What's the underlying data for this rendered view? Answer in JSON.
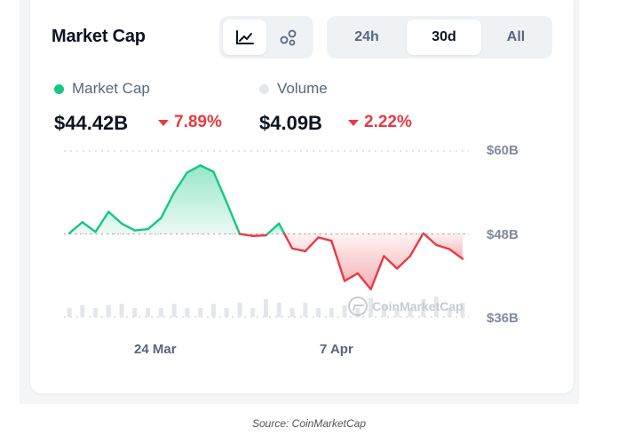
{
  "widget": {
    "title": "Market Cap",
    "chart_type_buttons": [
      {
        "icon": "line-chart-icon",
        "active": true
      },
      {
        "icon": "candle-dots-icon",
        "active": false
      }
    ],
    "time_ranges": [
      {
        "label": "24h",
        "active": false
      },
      {
        "label": "30d",
        "active": true
      },
      {
        "label": "All",
        "active": false
      }
    ],
    "legend": [
      {
        "label": "Market Cap",
        "color": "#16c784"
      },
      {
        "label": "Volume",
        "color": "#e3e6eb"
      }
    ],
    "stats": {
      "market_cap": {
        "value": "$44.42B",
        "change": "7.89%"
      },
      "volume": {
        "value": "$4.09B",
        "change": "2.22%"
      }
    },
    "watermark": "CoinMarketCap"
  },
  "caption": "Source: CoinMarketCap",
  "colors": {
    "up": "#16c784",
    "down": "#ea3943",
    "volume": "#e3e6eb"
  },
  "chart_data": {
    "type": "area",
    "title": "",
    "y_ticks": [
      "$60B",
      "$48B",
      "$36B"
    ],
    "ylim": [
      36,
      60
    ],
    "y_unit": "B USD",
    "x_ticks": [
      "24 Mar",
      "7 Apr"
    ],
    "baseline": 48,
    "series": [
      {
        "name": "Market Cap",
        "values": [
          48.1,
          49.7,
          48.3,
          51.2,
          49.5,
          48.5,
          48.7,
          50.3,
          54.0,
          56.9,
          57.9,
          57.0,
          52.6,
          48.0,
          47.7,
          47.8,
          49.5,
          45.9,
          45.5,
          47.5,
          47.0,
          41.2,
          42.3,
          40.0,
          44.8,
          43.0,
          44.8,
          48.1,
          46.4,
          45.8,
          44.4
        ]
      },
      {
        "name": "Volume",
        "values": [
          1.5,
          2.0,
          1.5,
          2.0,
          2.2,
          1.5,
          1.5,
          1.5,
          2.2,
          1.5,
          1.5,
          2.2,
          1.5,
          2.4,
          1.5,
          3.0,
          2.4,
          1.5,
          2.4,
          1.5,
          1.5,
          2.0,
          1.5,
          3.2,
          2.2,
          1.5,
          1.5,
          3.0,
          3.4,
          1.5,
          2.4
        ]
      }
    ]
  }
}
